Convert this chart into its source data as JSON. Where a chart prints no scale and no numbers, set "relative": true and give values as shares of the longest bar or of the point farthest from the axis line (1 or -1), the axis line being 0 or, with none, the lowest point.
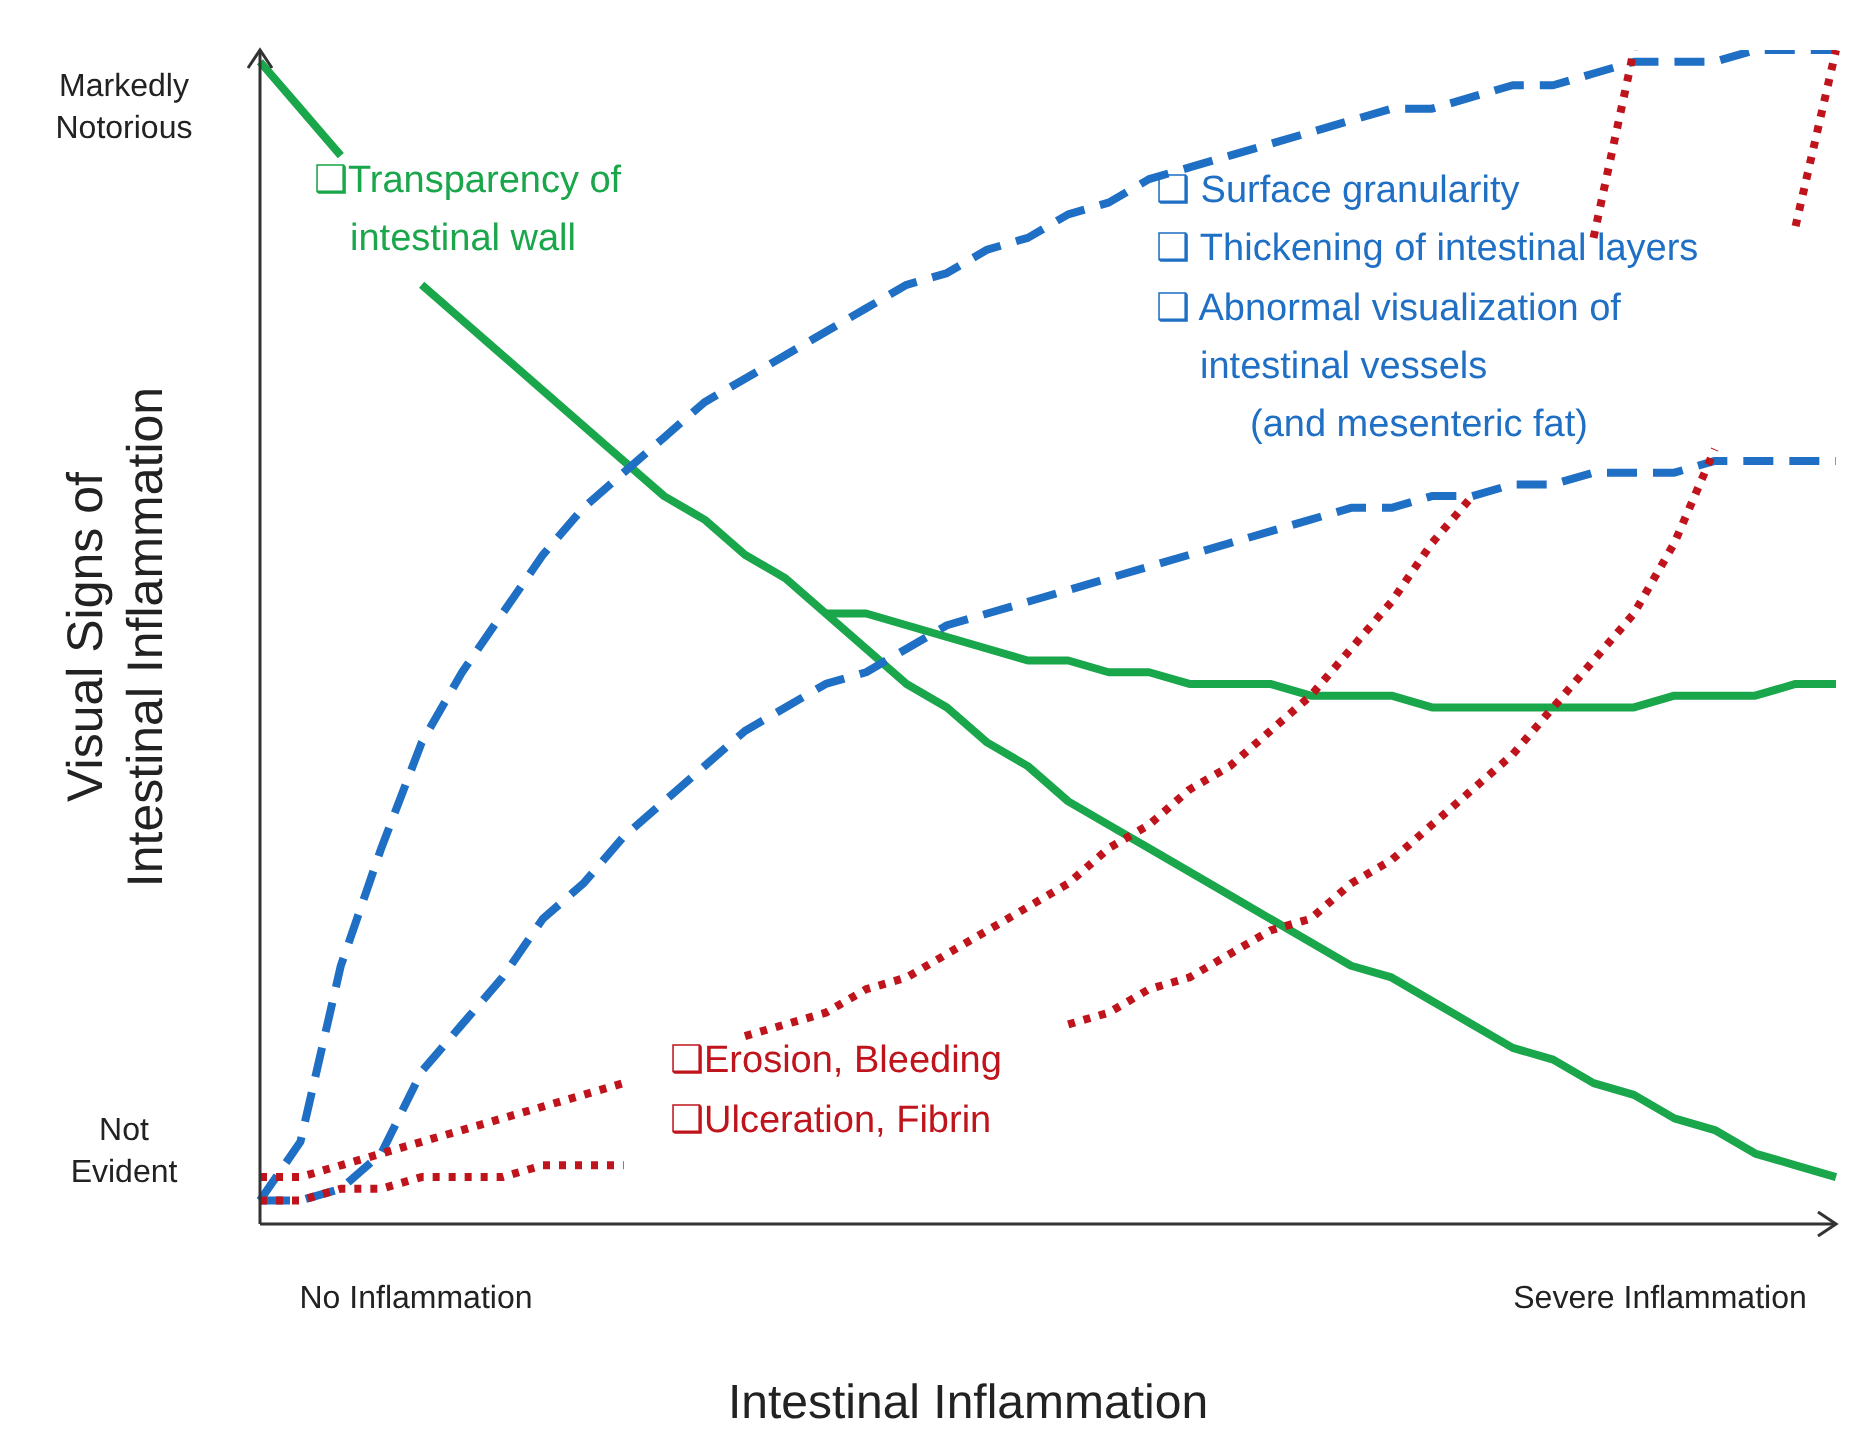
{
  "chart_data": {
    "type": "line",
    "relative": true,
    "xlabel": "Intestinal Inflammation",
    "ylabel": "Visual Signs of\nIntestinal Inflammation",
    "marker": "none",
    "categories": [
      null,
      null,
      null,
      null,
      null,
      null,
      null,
      null,
      null,
      null,
      null,
      null,
      null,
      null,
      null,
      null,
      null,
      null,
      null,
      null,
      null,
      null,
      null,
      null,
      null,
      null,
      null,
      null,
      null,
      null,
      null,
      null,
      null,
      null,
      null,
      null,
      null,
      null,
      null,
      null
    ],
    "series": [
      {
        "color": "#1aa64a",
        "line_style": "solid",
        "values": [
          0.99,
          0.95,
          0.91,
          null,
          0.8,
          0.77,
          0.74,
          0.71,
          0.68,
          0.65,
          0.62,
          0.6,
          0.57,
          0.55,
          0.52,
          0.49,
          0.46,
          0.44,
          0.41,
          0.39,
          0.36,
          0.34,
          0.32,
          0.3,
          0.28,
          0.26,
          0.24,
          0.22,
          0.21,
          0.19,
          0.17,
          0.15,
          0.14,
          0.12,
          0.11,
          0.09,
          0.08,
          0.06,
          0.05,
          0.04
        ]
      },
      {
        "color": "#1aa64a",
        "line_style": "solid",
        "values": [
          null,
          null,
          null,
          null,
          null,
          null,
          null,
          null,
          null,
          null,
          null,
          null,
          null,
          null,
          0.52,
          0.52,
          0.51,
          0.5,
          0.49,
          0.48,
          0.48,
          0.47,
          0.47,
          0.46,
          0.46,
          0.46,
          0.45,
          0.45,
          0.45,
          0.44,
          0.44,
          0.44,
          0.44,
          0.44,
          0.44,
          0.45,
          0.45,
          0.45,
          0.46,
          0.46
        ]
      },
      {
        "color": "#1f6fc5",
        "line_style": "dashed",
        "values": [
          0.02,
          0.07,
          0.22,
          0.32,
          0.41,
          0.47,
          0.52,
          0.57,
          0.61,
          0.64,
          0.67,
          0.7,
          0.72,
          0.74,
          0.76,
          0.78,
          0.8,
          0.81,
          0.83,
          0.84,
          0.86,
          0.87,
          0.89,
          0.9,
          0.91,
          0.92,
          0.93,
          0.94,
          0.95,
          0.95,
          0.96,
          0.97,
          0.97,
          0.98,
          0.99,
          0.99,
          0.99,
          1.0,
          1.0,
          1.0
        ]
      },
      {
        "color": "#1f6fc5",
        "line_style": "dashed",
        "values": [
          0.02,
          0.02,
          0.03,
          0.06,
          0.13,
          0.17,
          0.21,
          0.26,
          0.29,
          0.33,
          0.36,
          0.39,
          0.42,
          0.44,
          0.46,
          0.47,
          0.49,
          0.51,
          0.52,
          0.53,
          0.54,
          0.55,
          0.56,
          0.57,
          0.58,
          0.59,
          0.6,
          0.61,
          0.61,
          0.62,
          0.62,
          0.63,
          0.63,
          0.64,
          0.64,
          0.64,
          0.65,
          0.65,
          0.65,
          0.65
        ]
      },
      {
        "color": "#c0141c",
        "line_style": "dotted",
        "values": [
          0.04,
          0.04,
          0.05,
          0.06,
          0.07,
          0.08,
          0.09,
          0.1,
          0.11,
          0.12,
          null,
          null,
          0.16,
          0.17,
          0.18,
          0.2,
          0.21,
          0.23,
          0.25,
          0.27,
          0.29,
          0.32,
          0.34,
          0.37,
          0.39,
          0.42,
          0.45,
          0.49,
          0.53,
          0.58,
          0.62,
          null,
          null,
          0.84,
          1.0,
          null,
          null,
          null,
          null,
          null
        ]
      },
      {
        "color": "#c0141c",
        "line_style": "dotted",
        "values": [
          0.02,
          0.02,
          0.03,
          0.03,
          0.04,
          0.04,
          0.04,
          0.05,
          0.05,
          0.05,
          null,
          null,
          null,
          null,
          null,
          null,
          null,
          null,
          null,
          null,
          0.17,
          0.18,
          0.2,
          0.21,
          0.23,
          0.25,
          0.26,
          0.29,
          0.31,
          0.34,
          0.37,
          0.4,
          0.44,
          0.48,
          0.52,
          0.58,
          0.66,
          null,
          0.85,
          1.0
        ]
      }
    ],
    "annotations": [
      "Markedly\nNotorious",
      "Not\nEvident",
      "No Inflammation",
      "Severe Inflammation",
      "❑Transparency of",
      "intestinal wall",
      "❑ Surface granularity",
      "❑ Thickening of intestinal layers",
      "❑ Abnormal visualization of",
      "intestinal vessels",
      "(and mesenteric fat)",
      "❑Erosion, Bleeding",
      "❑Ulceration, Fibrin"
    ]
  }
}
